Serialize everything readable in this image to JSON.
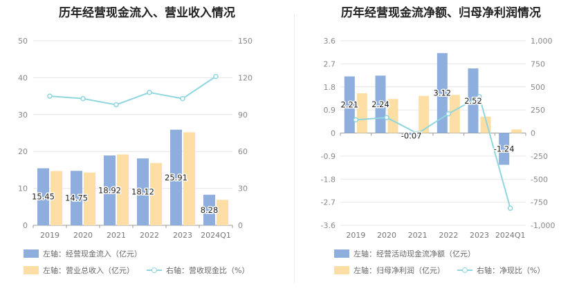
{
  "colors": {
    "blue": "#8eaedd",
    "orange": "#fddfa6",
    "line": "#8fd6de",
    "grid": "#e6e6e6"
  },
  "chart_data": [
    {
      "type": "bar",
      "title": "历年经营现金流入、营业收入情况",
      "categories": [
        "2019",
        "2020",
        "2021",
        "2022",
        "2023",
        "2024Q1"
      ],
      "left_axis": {
        "ylim": [
          0,
          50
        ],
        "ticks": [
          "0",
          "10",
          "20",
          "30",
          "40",
          "50"
        ]
      },
      "right_axis": {
        "ylim": [
          0,
          150
        ],
        "ticks": [
          "0",
          "30",
          "60",
          "90",
          "120",
          "150"
        ]
      },
      "series": [
        {
          "name": "左轴：经营现金流入（亿元）",
          "axis": "left",
          "kind": "bar",
          "color": "blue",
          "values": [
            15.45,
            14.75,
            18.92,
            18.12,
            25.91,
            8.28
          ],
          "show_labels": true
        },
        {
          "name": "左轴：营业总收入（亿元）",
          "axis": "left",
          "kind": "bar",
          "color": "orange",
          "values": [
            14.7,
            14.3,
            19.2,
            16.9,
            25.2,
            6.9
          ],
          "show_labels": false
        },
        {
          "name": "右轴：营收现金比（%）",
          "axis": "right",
          "kind": "line",
          "color": "line",
          "values": [
            105,
            103,
            98,
            108,
            103,
            121
          ],
          "show_labels": false
        }
      ],
      "value_labels": [
        "15.45",
        "14.75",
        "18.92",
        "18.12",
        "25.91",
        "8.28"
      ]
    },
    {
      "type": "bar",
      "title": "历年经营现金流净额、归母净利润情况",
      "categories": [
        "2019",
        "2020",
        "2021",
        "2022",
        "2023",
        "2024Q1"
      ],
      "left_axis": {
        "ylim": [
          -3.6,
          3.6
        ],
        "ticks": [
          "-3.6",
          "-2.7",
          "-1.8",
          "-0.9",
          "0",
          "0.9",
          "1.8",
          "2.7",
          "3.6"
        ]
      },
      "right_axis": {
        "ylim": [
          -1000,
          1000
        ],
        "ticks": [
          "-1,000",
          "-750",
          "-500",
          "-250",
          "0",
          "250",
          "500",
          "750",
          "1,000"
        ]
      },
      "series": [
        {
          "name": "左轴：经营活动现金流净额（亿元）",
          "axis": "left",
          "kind": "bar",
          "color": "blue",
          "values": [
            2.21,
            2.24,
            -0.07,
            3.12,
            2.52,
            -1.24
          ],
          "show_labels": true
        },
        {
          "name": "左轴：归母净利润（亿元）",
          "axis": "left",
          "kind": "bar",
          "color": "orange",
          "values": [
            1.55,
            1.33,
            1.45,
            1.49,
            0.64,
            0.14
          ],
          "show_labels": false
        },
        {
          "name": "右轴：净现比（%）",
          "axis": "right",
          "kind": "line",
          "color": "line",
          "values": [
            143,
            168,
            -5,
            209,
            394,
            -815
          ],
          "show_labels": false
        }
      ],
      "value_labels": [
        "2.21",
        "2.24",
        "-0.07",
        "3.12",
        "2.52",
        "-1.24"
      ]
    }
  ]
}
